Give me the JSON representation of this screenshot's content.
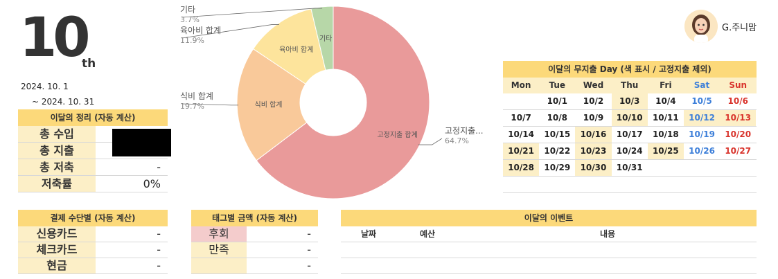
{
  "header": {
    "month_number": "10",
    "month_suffix": "th",
    "start_date": "2024. 10. 1",
    "end_date": "~  2024. 10. 31"
  },
  "profile": {
    "name": "G.주니맘",
    "avatar_icon": "avatar-icon"
  },
  "summary": {
    "title": "이달의 정리 (자동 계산)",
    "rows": [
      {
        "label": "총 수입",
        "value": ""
      },
      {
        "label": "총 지출",
        "value": ""
      },
      {
        "label": "총 저축",
        "value": "-"
      },
      {
        "label": "저축률",
        "value": "0%"
      }
    ]
  },
  "payment": {
    "title": "결제 수단별 (자동 계산)",
    "rows": [
      {
        "label": "신용카드",
        "value": "-"
      },
      {
        "label": "체크카드",
        "value": "-"
      },
      {
        "label": "현금",
        "value": "-"
      }
    ]
  },
  "tags": {
    "title": "태그별 금액 (자동 계산)",
    "rows": [
      {
        "label": "후회",
        "value": "-"
      },
      {
        "label": "만족",
        "value": "-"
      },
      {
        "label": "",
        "value": "-"
      }
    ]
  },
  "events": {
    "title": "이달의 이벤트",
    "columns": [
      "날짜",
      "예산",
      "내용"
    ]
  },
  "calendar": {
    "title": "이달의 무지출 Day (색 표시 / 고정지출 제외)",
    "days": [
      "Mon",
      "Tue",
      "Wed",
      "Thu",
      "Fri",
      "Sat",
      "Sun"
    ],
    "weeks": [
      [
        "",
        "10/1",
        "10/2",
        "10/3",
        "10/4",
        "10/5",
        "10/6"
      ],
      [
        "10/7",
        "10/8",
        "10/9",
        "10/10",
        "10/11",
        "10/12",
        "10/13"
      ],
      [
        "10/14",
        "10/15",
        "10/16",
        "10/17",
        "10/18",
        "10/19",
        "10/20"
      ],
      [
        "10/21",
        "10/22",
        "10/23",
        "10/24",
        "10/25",
        "10/26",
        "10/27"
      ],
      [
        "10/28",
        "10/29",
        "10/30",
        "10/31",
        "",
        "",
        ""
      ]
    ]
  },
  "chart_data": {
    "type": "pie",
    "donut": true,
    "categories": [
      "고정지출 합계",
      "식비 합계",
      "육아비 합계",
      "기타"
    ],
    "values": [
      64.7,
      19.7,
      11.9,
      3.7
    ],
    "colors": [
      "#e99a9a",
      "#f9c99a",
      "#fde49c",
      "#b7d7a8"
    ],
    "inside_labels": [
      "고정지출 합계",
      "식비 합계",
      "육아비 합계",
      "기타"
    ],
    "outside_labels": [
      "고정지출...",
      "식비 합계",
      "육아비 합계",
      "기타"
    ],
    "percent_labels": [
      "64.7%",
      "19.7%",
      "11.9%",
      "3.7%"
    ]
  }
}
